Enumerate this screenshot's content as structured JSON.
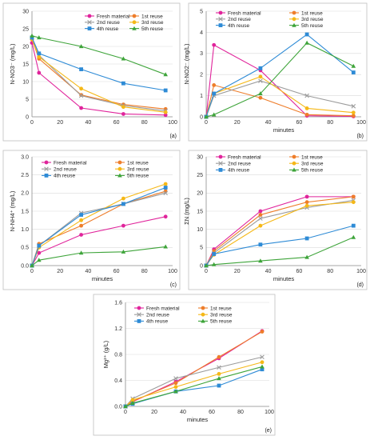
{
  "chart_data": [
    {
      "type": "line",
      "panel_label": "(a)",
      "xlabel": "",
      "ylabel": "N-NO3⁻ (mg/L)",
      "xlim": [
        0,
        100
      ],
      "ylim": [
        0,
        30
      ],
      "xticks": [
        0,
        20,
        40,
        60,
        80,
        100
      ],
      "yticks": [
        0,
        5,
        10,
        15,
        20,
        25,
        30
      ],
      "grid": "horizontal",
      "legend_position": "top-right",
      "series": [
        {
          "name": "Fresh material",
          "color": "#e0249b",
          "marker": "circle",
          "x": [
            0,
            5,
            35,
            65,
            95
          ],
          "y": [
            21,
            12.5,
            2.5,
            0.8,
            0.5
          ]
        },
        {
          "name": "1st reuse",
          "color": "#ee7d2a",
          "marker": "circle",
          "x": [
            0,
            5,
            35,
            65,
            95
          ],
          "y": [
            22,
            16.5,
            6.2,
            3.5,
            2.2
          ]
        },
        {
          "name": "2nd reuse",
          "color": "#9c9c9c",
          "marker": "cross",
          "x": [
            0,
            5,
            35,
            65,
            95
          ],
          "y": [
            22.5,
            17.5,
            6.0,
            3.2,
            1.7
          ]
        },
        {
          "name": "3rd reuse",
          "color": "#f5b817",
          "marker": "circle",
          "x": [
            0,
            5,
            35,
            65,
            95
          ],
          "y": [
            22,
            17,
            8.0,
            2.8,
            1.3
          ]
        },
        {
          "name": "4th reuse",
          "color": "#2e8bd6",
          "marker": "square",
          "x": [
            0,
            5,
            35,
            65,
            95
          ],
          "y": [
            22.5,
            18,
            13.5,
            9.5,
            7.5
          ]
        },
        {
          "name": "5th reuse",
          "color": "#3ea43a",
          "marker": "triangle",
          "x": [
            0,
            5,
            35,
            65,
            95
          ],
          "y": [
            23,
            22.5,
            20,
            16.5,
            12
          ]
        }
      ]
    },
    {
      "type": "line",
      "panel_label": "(b)",
      "xlabel": "minutes",
      "ylabel": "N-NO2⁻ (mg/L)",
      "xlim": [
        0,
        100
      ],
      "ylim": [
        0,
        5
      ],
      "xticks": [
        0,
        20,
        40,
        60,
        80,
        100
      ],
      "yticks": [
        0,
        1,
        2,
        3,
        4,
        5
      ],
      "grid": "horizontal",
      "legend_position": "top",
      "series": [
        {
          "name": "Fresh material",
          "color": "#e0249b",
          "marker": "circle",
          "x": [
            0,
            5,
            35,
            65,
            95
          ],
          "y": [
            0,
            3.4,
            2.2,
            0.05,
            0.02
          ]
        },
        {
          "name": "1st reuse",
          "color": "#ee7d2a",
          "marker": "circle",
          "x": [
            0,
            5,
            35,
            65,
            95
          ],
          "y": [
            0,
            1.5,
            0.9,
            0.1,
            0.05
          ]
        },
        {
          "name": "2nd reuse",
          "color": "#9c9c9c",
          "marker": "cross",
          "x": [
            0,
            5,
            35,
            65,
            95
          ],
          "y": [
            0,
            1.0,
            1.7,
            1.0,
            0.5
          ]
        },
        {
          "name": "3rd reuse",
          "color": "#f5b817",
          "marker": "circle",
          "x": [
            0,
            5,
            35,
            65,
            95
          ],
          "y": [
            0,
            1.1,
            1.9,
            0.4,
            0.2
          ]
        },
        {
          "name": "4th reuse",
          "color": "#2e8bd6",
          "marker": "square",
          "x": [
            0,
            5,
            35,
            65,
            95
          ],
          "y": [
            0,
            1.1,
            2.3,
            3.9,
            2.1
          ]
        },
        {
          "name": "5th reuse",
          "color": "#3ea43a",
          "marker": "triangle",
          "x": [
            0,
            5,
            35,
            65,
            95
          ],
          "y": [
            0,
            0.1,
            1.1,
            3.5,
            2.4
          ]
        }
      ]
    },
    {
      "type": "line",
      "panel_label": "(c)",
      "xlabel": "minutes",
      "ylabel": "N-NH4⁺ (mg/L)",
      "xlim": [
        0,
        100
      ],
      "ylim": [
        0,
        3.0
      ],
      "xticks": [
        0,
        20,
        40,
        60,
        80,
        100
      ],
      "yticks": [
        0,
        0.5,
        1.0,
        1.5,
        2.0,
        2.5,
        3.0
      ],
      "grid": "horizontal",
      "legend_position": "top",
      "series": [
        {
          "name": "Fresh material",
          "color": "#e0249b",
          "marker": "circle",
          "x": [
            0,
            5,
            35,
            65,
            95
          ],
          "y": [
            0,
            0.35,
            0.85,
            1.1,
            1.35
          ]
        },
        {
          "name": "1st reuse",
          "color": "#ee7d2a",
          "marker": "circle",
          "x": [
            0,
            5,
            35,
            65,
            95
          ],
          "y": [
            0,
            0.6,
            1.1,
            1.7,
            2.05
          ]
        },
        {
          "name": "2nd reuse",
          "color": "#9c9c9c",
          "marker": "cross",
          "x": [
            0,
            5,
            35,
            65,
            95
          ],
          "y": [
            0,
            0.55,
            1.45,
            1.7,
            2.0
          ]
        },
        {
          "name": "3rd reuse",
          "color": "#f5b817",
          "marker": "circle",
          "x": [
            0,
            5,
            35,
            65,
            95
          ],
          "y": [
            0,
            0.5,
            1.25,
            1.85,
            2.25
          ]
        },
        {
          "name": "4th reuse",
          "color": "#2e8bd6",
          "marker": "square",
          "x": [
            0,
            5,
            35,
            65,
            95
          ],
          "y": [
            0,
            0.55,
            1.4,
            1.7,
            2.15
          ]
        },
        {
          "name": "5th reuse",
          "color": "#3ea43a",
          "marker": "triangle",
          "x": [
            0,
            5,
            35,
            65,
            95
          ],
          "y": [
            0,
            0.15,
            0.35,
            0.38,
            0.52
          ]
        }
      ]
    },
    {
      "type": "line",
      "panel_label": "(d)",
      "xlabel": "minutes",
      "ylabel": "ΣN (mg/L)",
      "xlim": [
        0,
        100
      ],
      "ylim": [
        0,
        30
      ],
      "xticks": [
        0,
        20,
        40,
        60,
        80,
        100
      ],
      "yticks": [
        0,
        5,
        10,
        15,
        20,
        25,
        30
      ],
      "grid": "horizontal",
      "legend_position": "top",
      "series": [
        {
          "name": "Fresh material",
          "color": "#e0249b",
          "marker": "circle",
          "x": [
            0,
            5,
            35,
            65,
            95
          ],
          "y": [
            0,
            4.5,
            15,
            19,
            19
          ]
        },
        {
          "name": "1st reuse",
          "color": "#ee7d2a",
          "marker": "circle",
          "x": [
            0,
            5,
            35,
            65,
            95
          ],
          "y": [
            0,
            4.0,
            14,
            17.5,
            19
          ]
        },
        {
          "name": "2nd reuse",
          "color": "#9c9c9c",
          "marker": "cross",
          "x": [
            0,
            5,
            35,
            65,
            95
          ],
          "y": [
            0,
            3.5,
            13,
            16,
            18
          ]
        },
        {
          "name": "3rd reuse",
          "color": "#f5b817",
          "marker": "circle",
          "x": [
            0,
            5,
            35,
            65,
            95
          ],
          "y": [
            0,
            3.0,
            11,
            16.5,
            17.5
          ]
        },
        {
          "name": "4th reuse",
          "color": "#2e8bd6",
          "marker": "square",
          "x": [
            0,
            5,
            35,
            65,
            95
          ],
          "y": [
            0,
            3.2,
            5.8,
            7.5,
            11
          ]
        },
        {
          "name": "5th reuse",
          "color": "#3ea43a",
          "marker": "triangle",
          "x": [
            0,
            5,
            35,
            65,
            95
          ],
          "y": [
            0,
            0.3,
            1.3,
            2.3,
            7.8
          ]
        }
      ]
    },
    {
      "type": "line",
      "panel_label": "(e)",
      "xlabel": "minutes",
      "ylabel": "Mg²⁺ (g/L)",
      "xlim": [
        0,
        100
      ],
      "ylim": [
        0,
        1.6
      ],
      "xticks": [
        0,
        20,
        40,
        60,
        80,
        100
      ],
      "yticks": [
        0,
        0.4,
        0.8,
        1.2,
        1.6
      ],
      "grid": "horizontal",
      "legend_position": "top",
      "series": [
        {
          "name": "Fresh material",
          "color": "#e0249b",
          "marker": "circle",
          "x": [
            0,
            5,
            35,
            65,
            95
          ],
          "y": [
            0,
            0.07,
            0.38,
            0.74,
            1.16
          ]
        },
        {
          "name": "1st reuse",
          "color": "#ee7d2a",
          "marker": "circle",
          "x": [
            0,
            5,
            35,
            65,
            95
          ],
          "y": [
            0,
            0.08,
            0.36,
            0.76,
            1.15
          ]
        },
        {
          "name": "2nd reuse",
          "color": "#9c9c9c",
          "marker": "cross",
          "x": [
            0,
            5,
            35,
            65,
            95
          ],
          "y": [
            0,
            0.12,
            0.43,
            0.6,
            0.76
          ]
        },
        {
          "name": "3rd reuse",
          "color": "#f5b817",
          "marker": "circle",
          "x": [
            0,
            5,
            35,
            65,
            95
          ],
          "y": [
            0,
            0.1,
            0.3,
            0.5,
            0.68
          ]
        },
        {
          "name": "4th reuse",
          "color": "#2e8bd6",
          "marker": "square",
          "x": [
            0,
            5,
            35,
            65,
            95
          ],
          "y": [
            0,
            0.04,
            0.23,
            0.32,
            0.57
          ]
        },
        {
          "name": "5th reuse",
          "color": "#3ea43a",
          "marker": "triangle",
          "x": [
            0,
            5,
            35,
            65,
            95
          ],
          "y": [
            0,
            0.05,
            0.23,
            0.43,
            0.61
          ]
        }
      ]
    }
  ]
}
